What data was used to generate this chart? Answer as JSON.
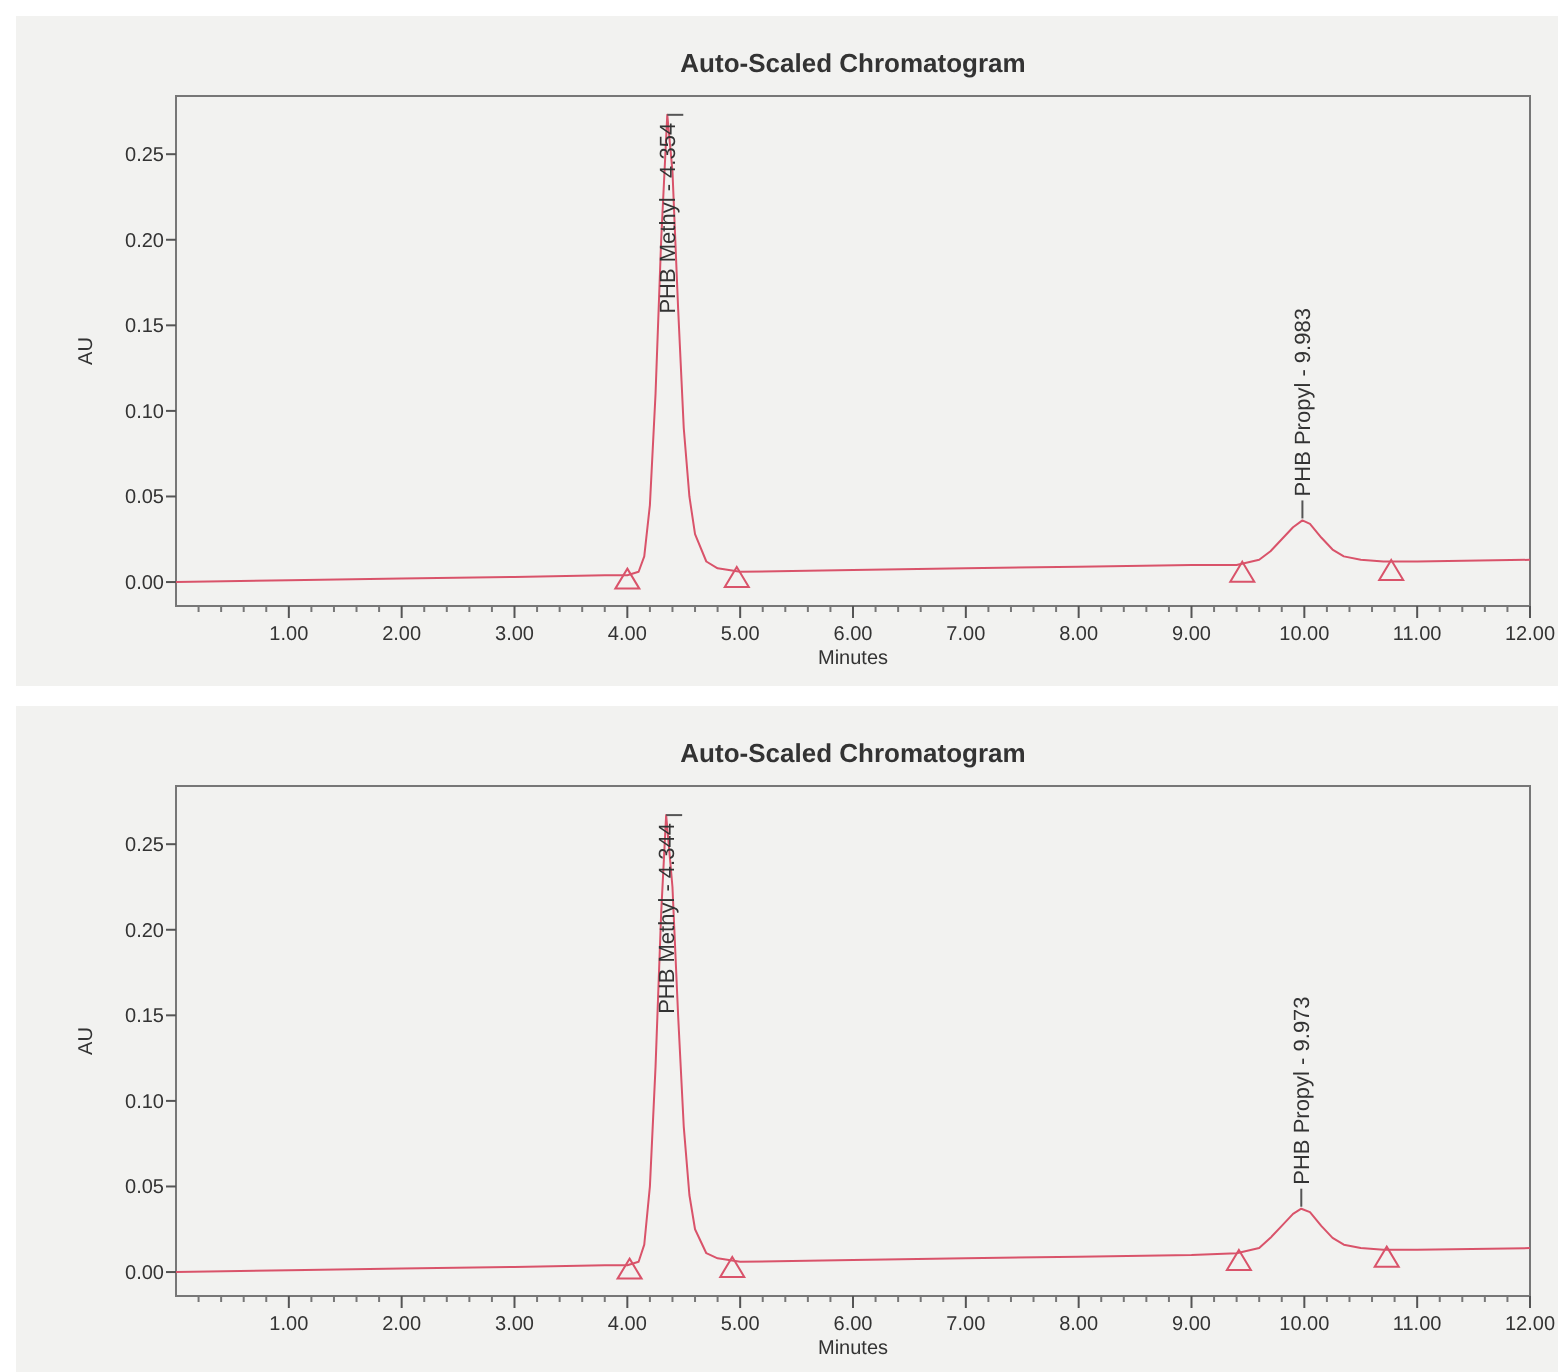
{
  "chart_data": [
    {
      "type": "line",
      "title": "Auto-Scaled Chromatogram",
      "xlabel": "Minutes",
      "ylabel": "AU",
      "xlim": [
        0,
        12
      ],
      "ylim": [
        -0.014,
        0.284
      ],
      "xticks": [
        {
          "value": 1,
          "label": "1.00"
        },
        {
          "value": 2,
          "label": "2.00"
        },
        {
          "value": 3,
          "label": "3.00"
        },
        {
          "value": 4,
          "label": "4.00"
        },
        {
          "value": 5,
          "label": "5.00"
        },
        {
          "value": 6,
          "label": "6.00"
        },
        {
          "value": 7,
          "label": "7.00"
        },
        {
          "value": 8,
          "label": "8.00"
        },
        {
          "value": 9,
          "label": "9.00"
        },
        {
          "value": 10,
          "label": "10.00"
        },
        {
          "value": 11,
          "label": "11.00"
        },
        {
          "value": 12,
          "label": "12.00"
        }
      ],
      "yticks": [
        {
          "value": 0,
          "label": "0.00"
        },
        {
          "value": 0.05,
          "label": "0.05"
        },
        {
          "value": 0.1,
          "label": "0.10"
        },
        {
          "value": 0.15,
          "label": "0.15"
        },
        {
          "value": 0.2,
          "label": "0.20"
        },
        {
          "value": 0.25,
          "label": "0.25"
        }
      ],
      "grid": false,
      "series": [
        {
          "color": "#d9536a",
          "x": [
            0,
            1,
            2,
            3,
            3.8,
            4.0,
            4.1,
            4.15,
            4.2,
            4.25,
            4.3,
            4.354,
            4.4,
            4.45,
            4.5,
            4.55,
            4.6,
            4.7,
            4.8,
            5.0,
            6,
            7,
            8,
            9,
            9.4,
            9.6,
            9.7,
            9.8,
            9.9,
            9.983,
            10.05,
            10.15,
            10.25,
            10.35,
            10.5,
            10.7,
            11,
            12
          ],
          "values": [
            0,
            0.001,
            0.002,
            0.003,
            0.004,
            0.004,
            0.006,
            0.015,
            0.045,
            0.11,
            0.2,
            0.273,
            0.24,
            0.16,
            0.09,
            0.05,
            0.028,
            0.012,
            0.008,
            0.006,
            0.007,
            0.008,
            0.009,
            0.01,
            0.01,
            0.013,
            0.018,
            0.025,
            0.032,
            0.036,
            0.034,
            0.026,
            0.019,
            0.015,
            0.013,
            0.012,
            0.012,
            0.013
          ]
        },
        {
          "type": "scatter",
          "marker": "triangle",
          "color": "#d9536a",
          "x": [
            4.0,
            4.97,
            9.45,
            10.77
          ],
          "values": [
            0.002,
            0.003,
            0.006,
            0.007
          ]
        }
      ],
      "annotations": [
        {
          "text": "PHB Methyl - 4.354",
          "x": 4.354,
          "y": 0.273
        },
        {
          "text": "PHB Propyl - 9.983",
          "x": 9.983,
          "y": 0.036
        }
      ]
    },
    {
      "type": "line",
      "title": "Auto-Scaled Chromatogram",
      "xlabel": "Minutes",
      "ylabel": "AU",
      "xlim": [
        0,
        12
      ],
      "ylim": [
        -0.014,
        0.284
      ],
      "xticks": [
        {
          "value": 1,
          "label": "1.00"
        },
        {
          "value": 2,
          "label": "2.00"
        },
        {
          "value": 3,
          "label": "3.00"
        },
        {
          "value": 4,
          "label": "4.00"
        },
        {
          "value": 5,
          "label": "5.00"
        },
        {
          "value": 6,
          "label": "6.00"
        },
        {
          "value": 7,
          "label": "7.00"
        },
        {
          "value": 8,
          "label": "8.00"
        },
        {
          "value": 9,
          "label": "9.00"
        },
        {
          "value": 10,
          "label": "10.00"
        },
        {
          "value": 11,
          "label": "11.00"
        },
        {
          "value": 12,
          "label": "12.00"
        }
      ],
      "yticks": [
        {
          "value": 0,
          "label": "0.00"
        },
        {
          "value": 0.05,
          "label": "0.05"
        },
        {
          "value": 0.1,
          "label": "0.10"
        },
        {
          "value": 0.15,
          "label": "0.15"
        },
        {
          "value": 0.2,
          "label": "0.20"
        },
        {
          "value": 0.25,
          "label": "0.25"
        }
      ],
      "grid": false,
      "series": [
        {
          "color": "#d9536a",
          "x": [
            0,
            1,
            2,
            3,
            3.8,
            4.0,
            4.1,
            4.15,
            4.2,
            4.25,
            4.3,
            4.344,
            4.4,
            4.45,
            4.5,
            4.55,
            4.6,
            4.7,
            4.8,
            5.0,
            6,
            7,
            8,
            9,
            9.4,
            9.6,
            9.7,
            9.8,
            9.9,
            9.973,
            10.05,
            10.15,
            10.25,
            10.35,
            10.5,
            10.7,
            11,
            12
          ],
          "values": [
            0,
            0.001,
            0.002,
            0.003,
            0.004,
            0.004,
            0.006,
            0.016,
            0.05,
            0.12,
            0.21,
            0.267,
            0.225,
            0.15,
            0.085,
            0.045,
            0.025,
            0.011,
            0.008,
            0.006,
            0.007,
            0.008,
            0.009,
            0.01,
            0.011,
            0.014,
            0.02,
            0.027,
            0.034,
            0.037,
            0.035,
            0.027,
            0.02,
            0.016,
            0.014,
            0.013,
            0.013,
            0.014
          ]
        },
        {
          "type": "scatter",
          "marker": "triangle",
          "color": "#d9536a",
          "x": [
            4.02,
            4.93,
            9.42,
            10.73
          ],
          "values": [
            0.002,
            0.003,
            0.007,
            0.009
          ]
        }
      ],
      "annotations": [
        {
          "text": "PHB Methyl - 4.344",
          "x": 4.344,
          "y": 0.267
        },
        {
          "text": "PHB Propyl - 9.973",
          "x": 9.973,
          "y": 0.037
        }
      ]
    }
  ]
}
